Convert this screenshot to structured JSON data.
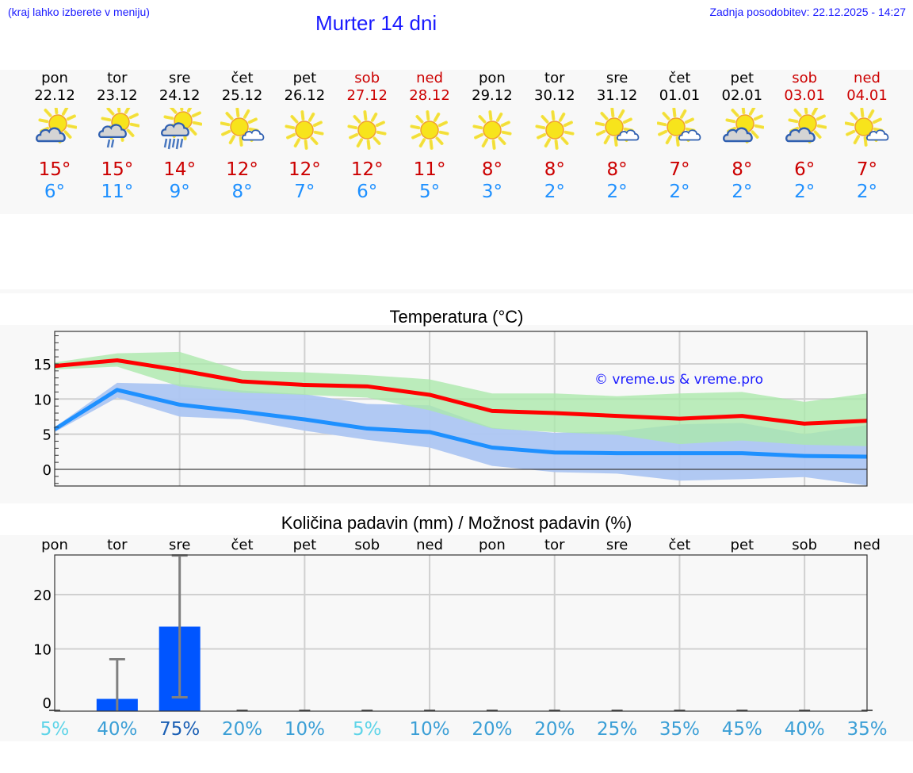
{
  "header": {
    "hint": "(kraj lahko izberete v meniju)",
    "title": "Murter 14 dni",
    "updated": "Zadnja posodobitev: 22.12.2025 - 14:27"
  },
  "colors": {
    "header_text": "#1a1aff",
    "max_temp": "#cc0000",
    "min_temp": "#1e90ff",
    "weekend": "#cc0000",
    "max_line": "#ff0000",
    "min_line": "#1e90ff",
    "max_band": "#abe8ab",
    "min_band": "#adc6f2",
    "precip_bar": "#0055ff",
    "error_bar": "#808080"
  },
  "days": [
    {
      "name": "pon",
      "date": "22.12",
      "icon": "partly-cloudy-icon",
      "max": "15°",
      "min": "6°",
      "weekend": false
    },
    {
      "name": "tor",
      "date": "23.12",
      "icon": "cloudy-light-rain-icon",
      "max": "15°",
      "min": "11°",
      "weekend": false
    },
    {
      "name": "sre",
      "date": "24.12",
      "icon": "cloudy-rain-icon",
      "max": "14°",
      "min": "9°",
      "weekend": false
    },
    {
      "name": "čet",
      "date": "25.12",
      "icon": "sun-small-cloud-icon",
      "max": "12°",
      "min": "8°",
      "weekend": false
    },
    {
      "name": "pet",
      "date": "26.12",
      "icon": "sun-icon",
      "max": "12°",
      "min": "7°",
      "weekend": false
    },
    {
      "name": "sob",
      "date": "27.12",
      "icon": "sun-icon",
      "max": "12°",
      "min": "6°",
      "weekend": true
    },
    {
      "name": "ned",
      "date": "28.12",
      "icon": "sun-icon",
      "max": "11°",
      "min": "5°",
      "weekend": true
    },
    {
      "name": "pon",
      "date": "29.12",
      "icon": "sun-icon",
      "max": "8°",
      "min": "3°",
      "weekend": false
    },
    {
      "name": "tor",
      "date": "30.12",
      "icon": "sun-icon",
      "max": "8°",
      "min": "2°",
      "weekend": false
    },
    {
      "name": "sre",
      "date": "31.12",
      "icon": "sun-small-cloud-icon",
      "max": "8°",
      "min": "2°",
      "weekend": false
    },
    {
      "name": "čet",
      "date": "01.01",
      "icon": "sun-small-cloud-icon",
      "max": "7°",
      "min": "2°",
      "weekend": false
    },
    {
      "name": "pet",
      "date": "02.01",
      "icon": "partly-cloudy-icon",
      "max": "8°",
      "min": "2°",
      "weekend": false
    },
    {
      "name": "sob",
      "date": "03.01",
      "icon": "partly-cloudy-icon",
      "max": "6°",
      "min": "2°",
      "weekend": true
    },
    {
      "name": "ned",
      "date": "04.01",
      "icon": "sun-small-cloud-icon",
      "max": "7°",
      "min": "2°",
      "weekend": true
    }
  ],
  "chart_data": [
    {
      "type": "line",
      "title": "Temperatura (°C)",
      "watermark": "© vreme.us & vreme.pro",
      "xlabel": "",
      "ylabel": "",
      "categories": [
        "22.12",
        "23.12",
        "24.12",
        "25.12",
        "26.12",
        "27.12",
        "28.12",
        "29.12",
        "30.12",
        "31.12",
        "01.01",
        "02.01",
        "03.01",
        "04.01"
      ],
      "ylim": [
        -2.5,
        19.5
      ],
      "yticks": [
        0,
        5,
        10,
        15
      ],
      "grid": true,
      "series": [
        {
          "name": "max",
          "color": "#ff0000",
          "values": [
            14.7,
            15.5,
            14.1,
            12.5,
            12.0,
            11.8,
            10.6,
            8.3,
            8.0,
            7.6,
            7.2,
            7.6,
            6.5,
            6.9
          ]
        },
        {
          "name": "max_upper",
          "color": "#abe8ab",
          "values": [
            15.2,
            16.5,
            16.7,
            14.0,
            13.8,
            13.4,
            12.8,
            10.8,
            10.8,
            10.4,
            10.8,
            11.0,
            9.6,
            10.8
          ]
        },
        {
          "name": "max_lower",
          "color": "#abe8ab",
          "values": [
            14.2,
            14.6,
            11.8,
            10.9,
            10.6,
            10.2,
            8.4,
            5.8,
            5.3,
            4.9,
            3.6,
            4.1,
            3.5,
            3.3
          ]
        },
        {
          "name": "min",
          "color": "#1e90ff",
          "values": [
            5.7,
            11.3,
            9.2,
            8.2,
            7.1,
            5.8,
            5.3,
            3.1,
            2.4,
            2.3,
            2.3,
            2.3,
            1.9,
            1.8
          ]
        },
        {
          "name": "min_upper",
          "color": "#adc6f2",
          "values": [
            6.0,
            12.3,
            12.1,
            11.2,
            10.7,
            9.3,
            9.1,
            5.9,
            5.2,
            5.4,
            6.4,
            6.6,
            5.0,
            6.3
          ]
        },
        {
          "name": "min_lower",
          "color": "#adc6f2",
          "values": [
            5.3,
            10.2,
            7.5,
            7.1,
            5.5,
            4.2,
            3.1,
            0.5,
            -0.4,
            -0.6,
            -1.6,
            -1.4,
            -1.1,
            -2.3
          ]
        }
      ]
    },
    {
      "type": "bar",
      "title": "Količina padavin (mm) / Možnost padavin (%)",
      "xlabel": "",
      "ylabel": "",
      "categories": [
        "pon",
        "tor",
        "sre",
        "čet",
        "pet",
        "sob",
        "ned",
        "pon",
        "tor",
        "sre",
        "čet",
        "pet",
        "sob",
        "ned"
      ],
      "ylim": [
        -1.5,
        29
      ],
      "yticks": [
        0,
        10,
        20
      ],
      "grid": true,
      "series": [
        {
          "name": "precip_mm",
          "color": "#0055ff",
          "values": [
            0,
            0.8,
            14.1,
            0,
            0,
            0,
            0,
            0,
            0,
            0,
            0,
            0,
            0,
            0
          ]
        },
        {
          "name": "precip_max_mm",
          "color": "#808080",
          "values": [
            0,
            8.1,
            27.2,
            0,
            0,
            0,
            0,
            0,
            0,
            0,
            0,
            0,
            0,
            0
          ]
        },
        {
          "name": "precip_min_mm",
          "color": "#808080",
          "values": [
            0,
            0,
            1.1,
            0,
            0,
            0,
            0,
            0,
            0,
            0,
            0,
            0,
            0,
            0
          ]
        }
      ],
      "probability": [
        "5%",
        "40%",
        "75%",
        "20%",
        "10%",
        "5%",
        "10%",
        "20%",
        "20%",
        "25%",
        "35%",
        "45%",
        "40%",
        "35%"
      ],
      "probability_colors": [
        "#5ed4e8",
        "#3b9fd6",
        "#1a5fb4",
        "#3b9fd6",
        "#3b9fd6",
        "#5ed4e8",
        "#3b9fd6",
        "#3b9fd6",
        "#3b9fd6",
        "#3b9fd6",
        "#3b9fd6",
        "#3b9fd6",
        "#3b9fd6",
        "#3b9fd6"
      ]
    }
  ]
}
